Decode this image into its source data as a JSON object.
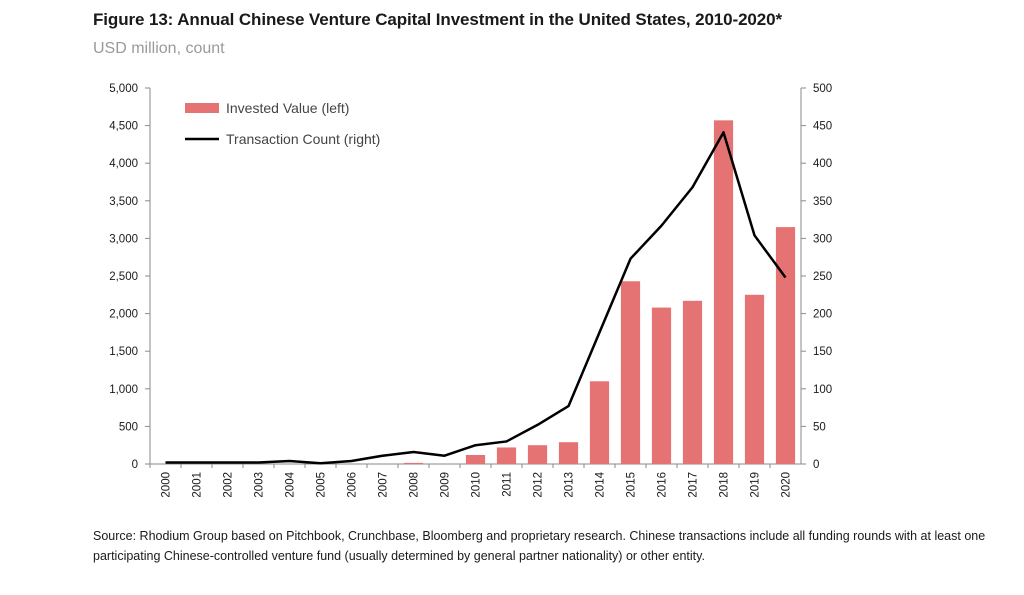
{
  "header": {
    "title": "Figure 13: Annual Chinese Venture Capital Investment in the United States, 2010-2020*",
    "subtitle": "USD million, count"
  },
  "source_note": "Source: Rhodium Group based on Pitchbook, Crunchbase, Bloomberg and proprietary research. Chinese transactions include all funding rounds with at least one participating Chinese-controlled venture fund (usually determined by general partner nationality) or other entity.",
  "colors": {
    "bar": "#e57373",
    "line": "#000000",
    "axis": "#8a8a8a"
  },
  "chart_data": {
    "type": "bar",
    "title": "Figure 13: Annual Chinese Venture Capital Investment in the United States, 2010-2020*",
    "xlabel": "",
    "ylabel": "USD million",
    "y2label": "count",
    "categories": [
      "2000",
      "2001",
      "2002",
      "2003",
      "2004",
      "2005",
      "2006",
      "2007",
      "2008",
      "2009",
      "2010",
      "2011",
      "2012",
      "2013",
      "2014",
      "2015",
      "2016",
      "2017",
      "2018",
      "2019",
      "2020"
    ],
    "ylim": [
      0,
      5000
    ],
    "y2lim": [
      0,
      500
    ],
    "yticks": [
      "0",
      "500",
      "1,000",
      "1,500",
      "2,000",
      "2,500",
      "3,000",
      "3,500",
      "4,000",
      "4,500",
      "5,000"
    ],
    "y2ticks": [
      "0",
      "50",
      "100",
      "150",
      "200",
      "250",
      "300",
      "350",
      "400",
      "450",
      "500"
    ],
    "legend_position": "top-left",
    "series": [
      {
        "name": "Invested Value (left)",
        "type": "bar",
        "axis": "left",
        "values": [
          0,
          0,
          0,
          0,
          0,
          0,
          0,
          0,
          15,
          0,
          120,
          220,
          250,
          290,
          1100,
          2430,
          2080,
          2170,
          4570,
          2250,
          3150
        ]
      },
      {
        "name": "Transaction Count (right)",
        "type": "line",
        "axis": "right",
        "values": [
          2,
          2,
          2,
          2,
          4,
          1,
          4,
          11,
          16,
          11,
          25,
          30,
          52,
          77,
          175,
          273,
          317,
          368,
          441,
          304,
          248
        ]
      }
    ]
  }
}
